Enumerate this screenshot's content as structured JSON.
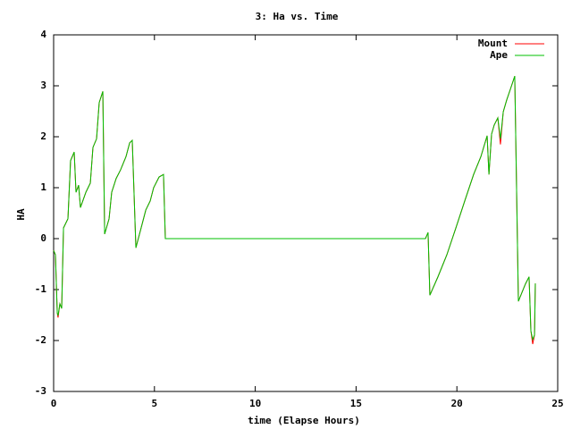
{
  "chart_data": {
    "type": "line",
    "title": "3: Ha vs. Time",
    "x_label": "time (Elapse Hours)",
    "y_label": "HA",
    "x": [
      0.0,
      0.09,
      0.18,
      0.22,
      0.31,
      0.4,
      0.49,
      0.71,
      0.84,
      1.02,
      1.11,
      1.24,
      1.33,
      1.6,
      1.82,
      1.95,
      2.13,
      2.26,
      2.44,
      2.53,
      2.75,
      2.88,
      3.1,
      3.32,
      3.59,
      3.77,
      3.9,
      4.08,
      4.34,
      4.57,
      4.79,
      4.96,
      5.23,
      5.45,
      5.54,
      18.44,
      18.57,
      18.66,
      19.06,
      19.5,
      19.95,
      20.39,
      20.83,
      21.19,
      21.5,
      21.59,
      21.72,
      21.85,
      22.03,
      22.16,
      22.3,
      22.47,
      22.65,
      22.87,
      23.05,
      23.4,
      23.58,
      23.67,
      23.76,
      23.85,
      23.89
    ],
    "series": [
      {
        "name": "Mount",
        "color": "#ff0000",
        "values": [
          -0.23,
          -0.32,
          -1.46,
          -1.55,
          -1.28,
          -1.37,
          0.21,
          0.39,
          1.53,
          1.7,
          0.91,
          1.05,
          0.61,
          0.91,
          1.09,
          1.79,
          1.96,
          2.67,
          2.89,
          0.09,
          0.39,
          0.91,
          1.18,
          1.35,
          1.61,
          1.88,
          1.93,
          -0.18,
          0.21,
          0.56,
          0.74,
          1.0,
          1.21,
          1.26,
          0.0,
          0.0,
          0.12,
          -1.11,
          -0.75,
          -0.32,
          0.21,
          0.74,
          1.26,
          1.61,
          2.02,
          1.26,
          2.05,
          2.23,
          2.37,
          1.85,
          2.49,
          2.72,
          2.93,
          3.19,
          -1.23,
          -0.89,
          -0.75,
          -1.81,
          -2.07,
          -1.89,
          -0.88
        ]
      },
      {
        "name": "Ape",
        "color": "#00c000",
        "values": [
          -0.23,
          -0.32,
          -1.46,
          -1.51,
          -1.28,
          -1.37,
          0.21,
          0.39,
          1.53,
          1.7,
          0.91,
          1.05,
          0.61,
          0.91,
          1.09,
          1.79,
          1.96,
          2.67,
          2.89,
          0.09,
          0.39,
          0.91,
          1.18,
          1.35,
          1.61,
          1.88,
          1.93,
          -0.18,
          0.21,
          0.56,
          0.74,
          1.0,
          1.21,
          1.26,
          0.0,
          0.0,
          0.12,
          -1.11,
          -0.75,
          -0.32,
          0.21,
          0.74,
          1.26,
          1.61,
          2.02,
          1.26,
          2.05,
          2.23,
          2.37,
          1.96,
          2.49,
          2.72,
          2.93,
          3.19,
          -1.23,
          -0.89,
          -0.75,
          -1.81,
          -1.98,
          -1.89,
          -0.88
        ]
      }
    ],
    "xlim": [
      0,
      25
    ],
    "xticks": [
      0,
      5,
      10,
      15,
      20,
      25
    ],
    "ylim": [
      -3,
      4
    ],
    "yticks": [
      -3,
      -2,
      -1,
      0,
      1,
      2,
      3,
      4
    ],
    "legend": "top-right"
  }
}
